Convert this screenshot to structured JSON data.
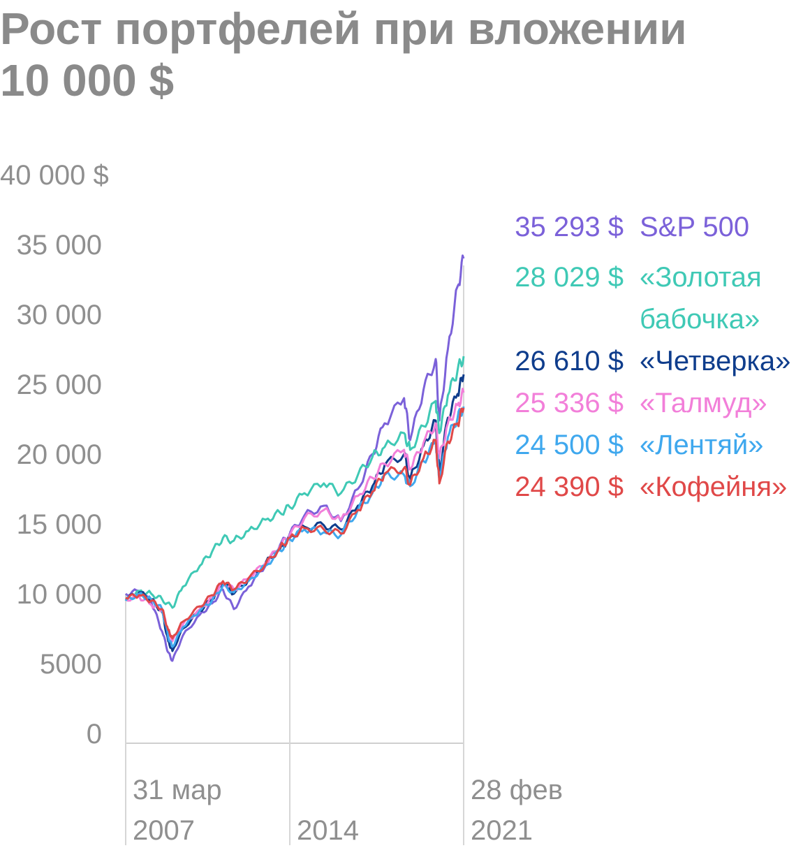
{
  "title_line1": "Рост портфелей при вложении",
  "title_line2": "10 000 $",
  "chart_data": {
    "type": "line",
    "title": "Рост портфелей при вложении 10 000 $",
    "ylim": [
      0,
      40000
    ],
    "y_ticks": [
      {
        "value": 40000,
        "label": "40 000 $"
      },
      {
        "value": 35000,
        "label": "35 000"
      },
      {
        "value": 30000,
        "label": "30 000"
      },
      {
        "value": 25000,
        "label": "25 000"
      },
      {
        "value": 20000,
        "label": "20 000"
      },
      {
        "value": 15000,
        "label": "15 000"
      },
      {
        "value": 10000,
        "label": "10 000"
      },
      {
        "value": 5000,
        "label": "5000"
      },
      {
        "value": 0,
        "label": "0"
      }
    ],
    "x_ticks": [
      {
        "value": 2007.25,
        "label_line1": "31 мар",
        "label_line2": "2007"
      },
      {
        "value": 2014.0,
        "label_line1": "",
        "label_line2": "2014"
      },
      {
        "value": 2021.15,
        "label_line1": "28 фев",
        "label_line2": "2021"
      }
    ],
    "xlim": [
      2007.25,
      2021.15
    ],
    "grid": "vertical",
    "legend_placement": "right",
    "series": [
      {
        "name": "S&P 500",
        "final_label": "35 293 $",
        "name_line1": "S&P 500",
        "name_line2": "",
        "color": "#7B61D9",
        "x": [
          2007.25,
          2007.8,
          2008.3,
          2008.75,
          2009.0,
          2009.17,
          2009.6,
          2010.3,
          2010.8,
          2011.25,
          2011.7,
          2012.3,
          2013.0,
          2013.6,
          2014.0,
          2014.6,
          2015.4,
          2016.1,
          2016.8,
          2017.4,
          2017.9,
          2018.7,
          2018.95,
          2019.5,
          2020.0,
          2020.15,
          2020.5,
          2020.9,
          2021.15
        ],
        "y": [
          10000,
          10200,
          9400,
          7300,
          5800,
          5200,
          7000,
          8500,
          9300,
          10300,
          8900,
          10500,
          12000,
          13500,
          14300,
          15600,
          16300,
          15200,
          17500,
          20000,
          22200,
          24000,
          21000,
          24600,
          26800,
          22400,
          27500,
          32000,
          34000
        ]
      },
      {
        "name": "«Золотая бабочка»",
        "final_label": "28 029 $",
        "name_line1": "«Золотая",
        "name_line2": "бабочка»",
        "color": "#3FC9B5",
        "x": [
          2007.25,
          2007.8,
          2008.3,
          2008.75,
          2009.17,
          2009.6,
          2010.3,
          2010.8,
          2011.25,
          2011.7,
          2012.3,
          2013.0,
          2013.6,
          2014.0,
          2014.6,
          2015.4,
          2016.1,
          2016.8,
          2017.4,
          2017.9,
          2018.7,
          2018.95,
          2019.5,
          2020.0,
          2020.15,
          2020.5,
          2020.9,
          2021.15
        ],
        "y": [
          9500,
          10200,
          10000,
          9600,
          9000,
          10500,
          12000,
          13000,
          14000,
          13800,
          14500,
          15300,
          15800,
          16200,
          17200,
          17900,
          17200,
          18500,
          19800,
          20500,
          21500,
          20300,
          22000,
          23800,
          21500,
          24200,
          26000,
          27000
        ]
      },
      {
        "name": "«Четверка»",
        "final_label": "26 610 $",
        "name_line1": "«Четверка»",
        "name_line2": "",
        "color": "#0F3D8C",
        "x": [
          2007.25,
          2007.8,
          2008.3,
          2008.75,
          2009.0,
          2009.17,
          2009.6,
          2010.3,
          2010.8,
          2011.25,
          2011.7,
          2012.3,
          2013.0,
          2013.6,
          2014.0,
          2014.6,
          2015.4,
          2016.1,
          2016.8,
          2017.4,
          2017.9,
          2018.7,
          2018.95,
          2019.5,
          2020.0,
          2020.15,
          2020.5,
          2020.9,
          2021.15
        ],
        "y": [
          9600,
          10100,
          9600,
          8700,
          6600,
          5900,
          7500,
          8800,
          9600,
          10800,
          10000,
          11000,
          12200,
          13200,
          14000,
          14800,
          14900,
          14600,
          16300,
          17700,
          19200,
          20000,
          18200,
          20600,
          22400,
          18800,
          22600,
          24300,
          25700
        ]
      },
      {
        "name": "«Талмуд»",
        "final_label": "25 336 $",
        "name_line1": "«Талмуд»",
        "name_line2": "",
        "color": "#F27FD9",
        "x": [
          2007.25,
          2007.8,
          2008.3,
          2008.75,
          2009.0,
          2009.17,
          2009.6,
          2010.3,
          2010.8,
          2011.25,
          2011.7,
          2012.3,
          2013.0,
          2013.6,
          2014.0,
          2014.6,
          2015.4,
          2016.1,
          2016.8,
          2017.4,
          2017.9,
          2018.7,
          2018.95,
          2019.5,
          2020.0,
          2020.15,
          2020.5,
          2020.9,
          2021.15
        ],
        "y": [
          9600,
          9800,
          9200,
          8800,
          7300,
          6600,
          7800,
          8900,
          9700,
          10800,
          10300,
          11100,
          12200,
          13400,
          14200,
          15400,
          16000,
          15300,
          17000,
          18300,
          19300,
          20300,
          18900,
          20800,
          22200,
          19700,
          22200,
          23500,
          24400
        ]
      },
      {
        "name": "«Лентяй»",
        "final_label": "24 500 $",
        "name_line1": "«Лентяй»",
        "name_line2": "",
        "color": "#3FA8EE",
        "x": [
          2007.25,
          2007.8,
          2008.3,
          2008.75,
          2009.0,
          2009.17,
          2009.6,
          2010.3,
          2010.8,
          2011.25,
          2011.7,
          2012.3,
          2013.0,
          2013.6,
          2014.0,
          2014.6,
          2015.4,
          2016.1,
          2016.8,
          2017.4,
          2017.9,
          2018.7,
          2018.95,
          2019.5,
          2020.0,
          2020.15,
          2020.5,
          2020.9,
          2021.15
        ],
        "y": [
          9500,
          10000,
          9600,
          8900,
          6900,
          6200,
          7600,
          8800,
          9500,
          10600,
          10100,
          10900,
          12000,
          13100,
          13900,
          14600,
          14400,
          14200,
          16000,
          17200,
          18500,
          18500,
          17700,
          19500,
          20900,
          18200,
          21200,
          22600,
          23400
        ]
      },
      {
        "name": "«Кофейня»",
        "final_label": "24 390 $",
        "name_line1": "«Кофейня»",
        "name_line2": "",
        "color": "#E04848",
        "x": [
          2007.25,
          2007.8,
          2008.3,
          2008.75,
          2009.0,
          2009.17,
          2009.6,
          2010.3,
          2010.8,
          2011.25,
          2011.7,
          2012.3,
          2013.0,
          2013.6,
          2014.0,
          2014.6,
          2015.4,
          2016.1,
          2016.8,
          2017.4,
          2017.9,
          2018.7,
          2018.95,
          2019.5,
          2020.0,
          2020.15,
          2020.5,
          2020.9,
          2021.15
        ],
        "y": [
          9700,
          9900,
          9500,
          8900,
          7400,
          6800,
          8000,
          9100,
          9900,
          10900,
          10300,
          11100,
          12100,
          13300,
          14000,
          14700,
          14600,
          14300,
          16000,
          17300,
          18600,
          19000,
          17800,
          19700,
          21000,
          17900,
          20900,
          22200,
          23300
        ]
      }
    ]
  }
}
